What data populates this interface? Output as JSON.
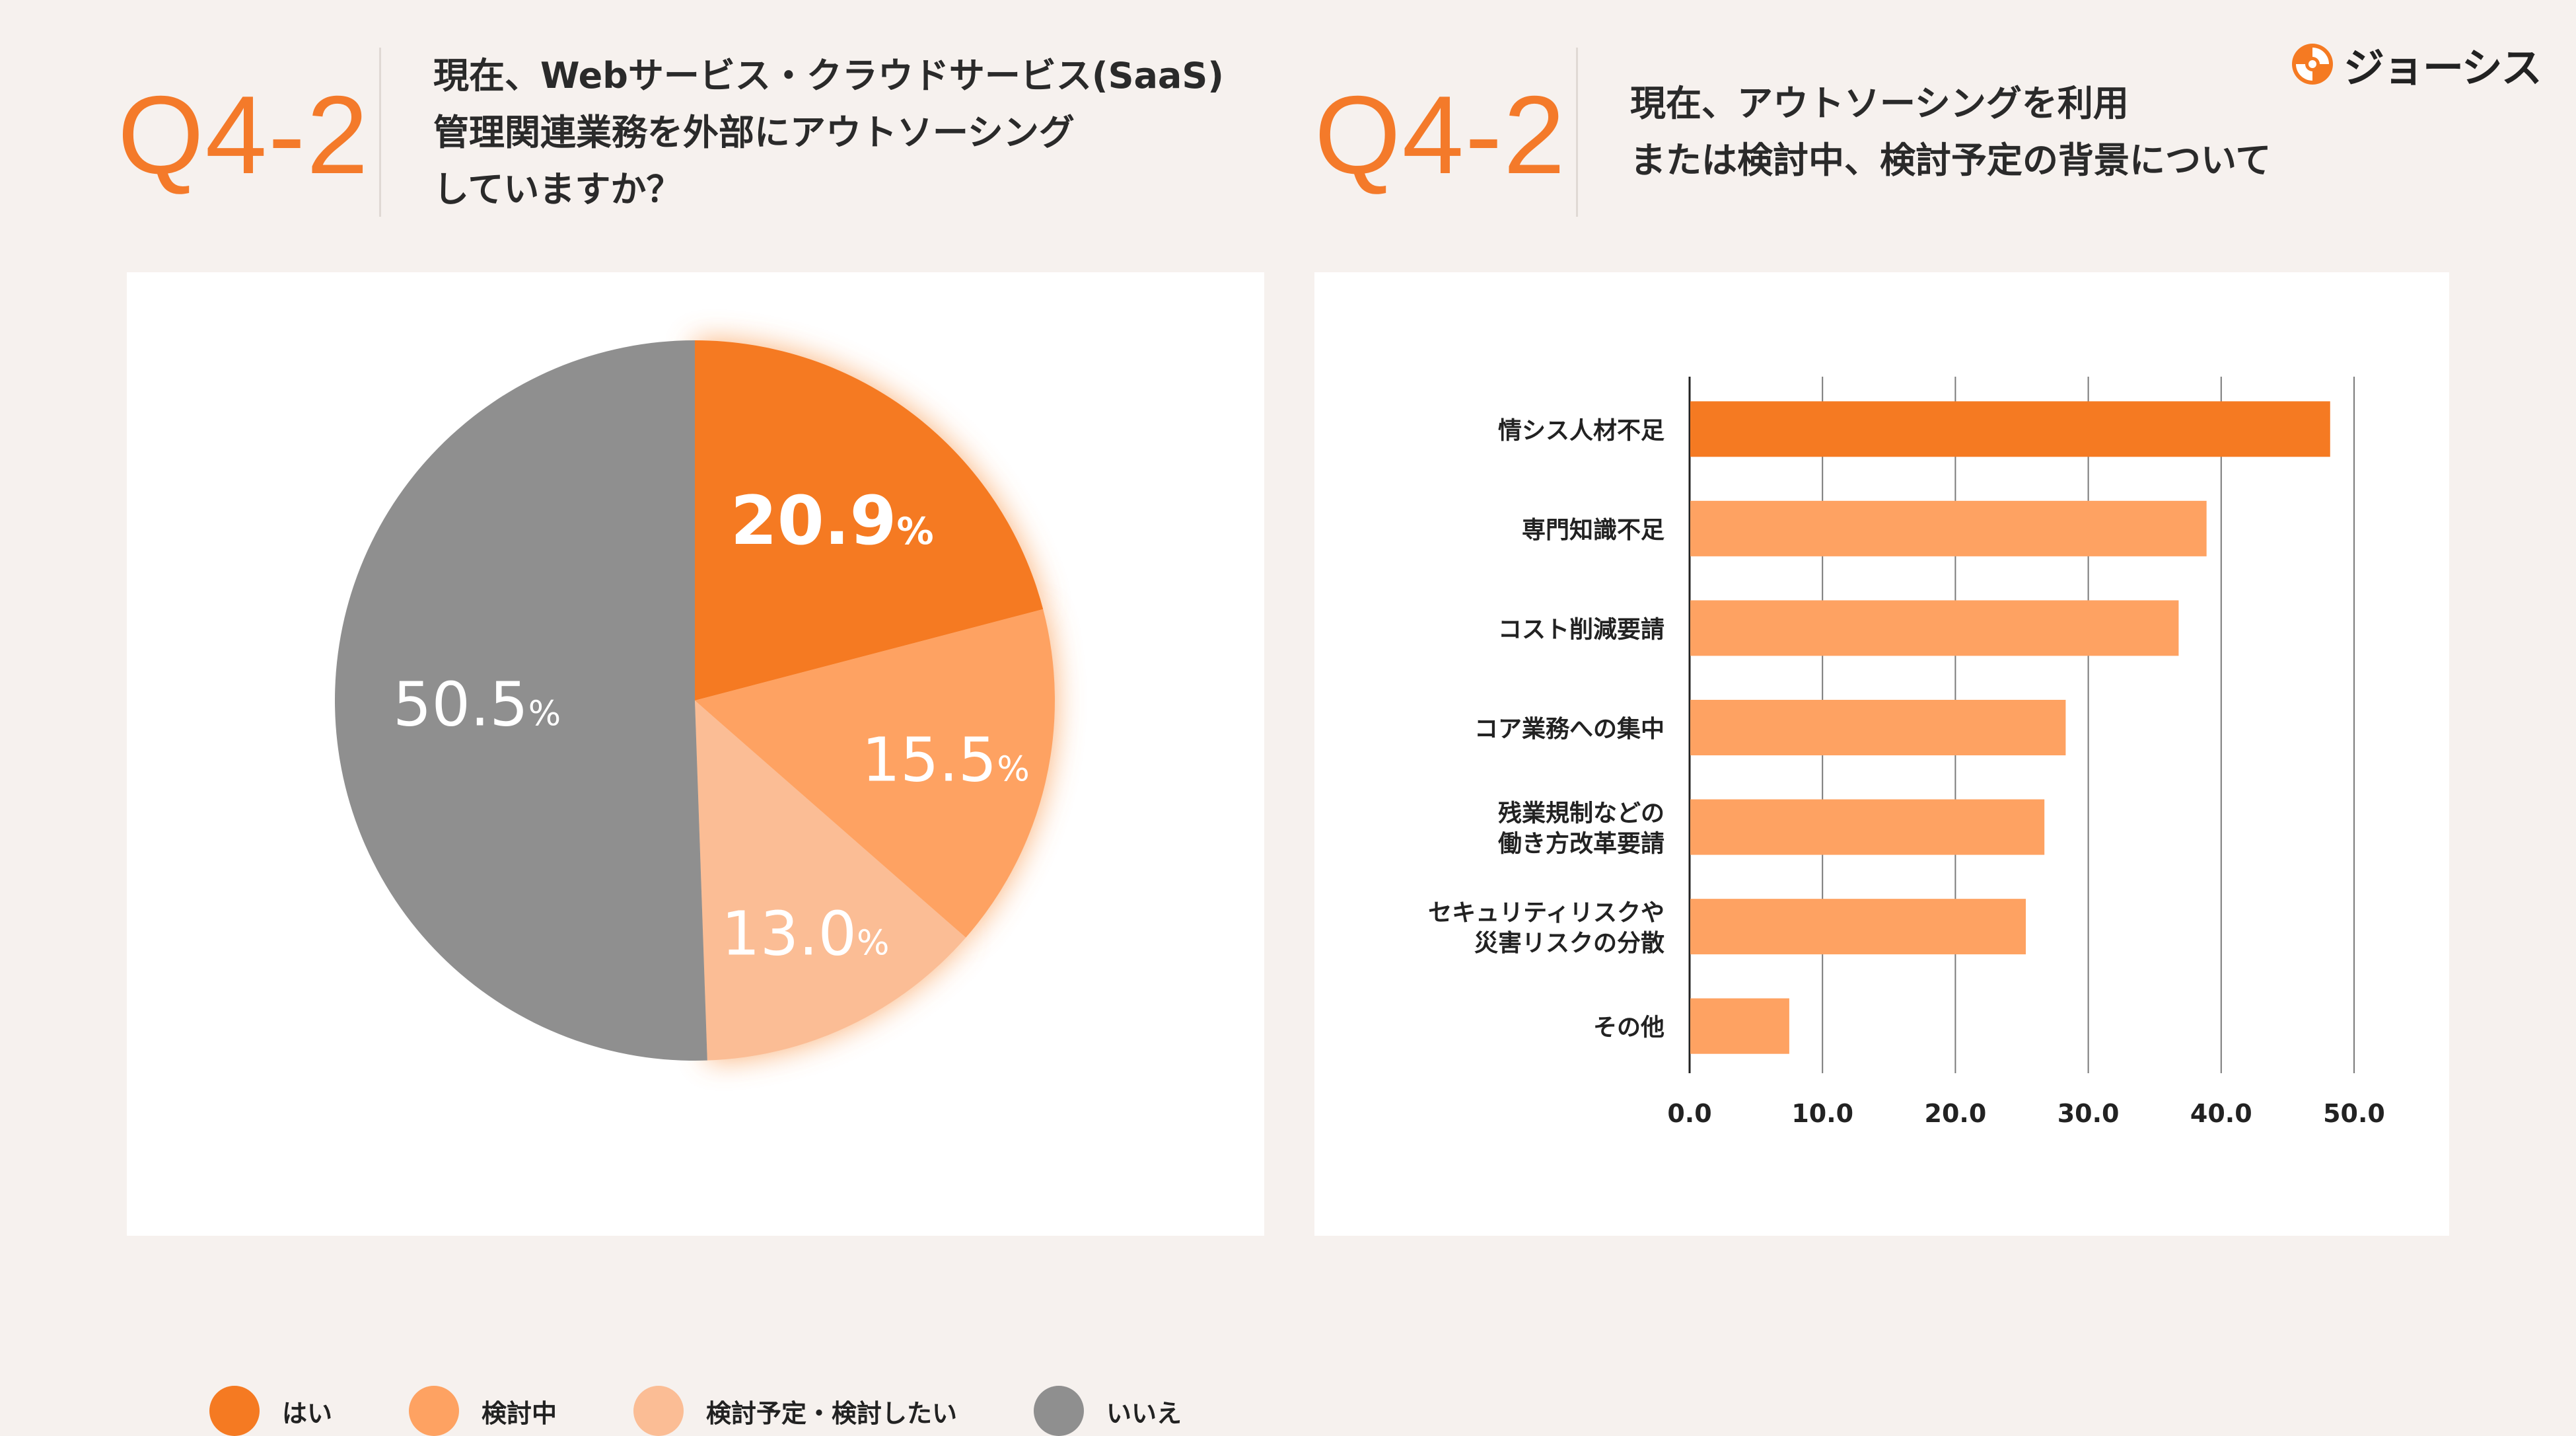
{
  "left": {
    "q_label": "Q4-2",
    "question_lines": [
      "現在、Webサービス・クラウドサービス(SaaS)",
      "管理関連業務を外部にアウトソーシング",
      "していますか？"
    ]
  },
  "right": {
    "q_label": "Q4-2",
    "question_lines": [
      "現在、アウトソーシングを利用",
      "または検討中、検討予定の背景について"
    ]
  },
  "logo": {
    "text": "ジョーシス",
    "icon": "joshys-logo-icon"
  },
  "chart_data": [
    {
      "type": "pie",
      "unit": "%",
      "slices": [
        {
          "label": "はい",
          "value": 20.9,
          "display": "20.9",
          "color": "#f57a22",
          "highlight": true
        },
        {
          "label": "検討中",
          "value": 15.5,
          "display": "15.5",
          "color": "#fea262"
        },
        {
          "label": "検討予定・検討したい",
          "value": 13.0,
          "display": "13.0",
          "color": "#fbbd95"
        },
        {
          "label": "いいえ",
          "value": 50.5,
          "display": "50.5",
          "color": "#8f8f8f"
        }
      ]
    },
    {
      "type": "bar",
      "orientation": "horizontal",
      "categories": [
        [
          "情シス人材不足"
        ],
        [
          "専門知識不足"
        ],
        [
          "コスト削減要請"
        ],
        [
          "コア業務への集中"
        ],
        [
          "残業規制などの",
          "働き方改革要請"
        ],
        [
          "セキュリティリスクや",
          "災害リスクの分散"
        ],
        [
          "その他"
        ]
      ],
      "values": [
        48.2,
        38.9,
        36.8,
        28.3,
        26.7,
        25.3,
        7.5
      ],
      "colors": [
        "#f57a22",
        "#fea262",
        "#fea262",
        "#fea262",
        "#fea262",
        "#fea262",
        "#fea262"
      ],
      "xlim": [
        0,
        50
      ],
      "xticks": [
        0,
        10,
        20,
        30,
        40,
        50
      ],
      "xtick_labels": [
        "0.0",
        "10.0",
        "20.0",
        "30.0",
        "40.0",
        "50.0"
      ],
      "grid": true
    }
  ]
}
